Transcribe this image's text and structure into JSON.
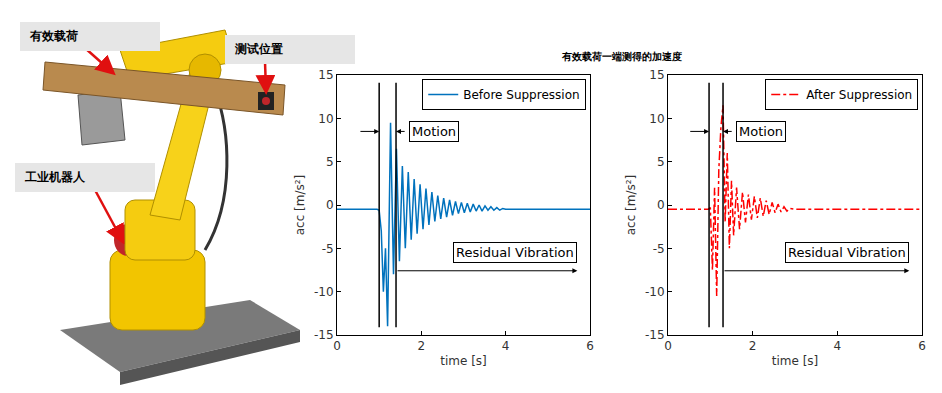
{
  "figure": {
    "title": "有效载荷一端测得的加速度",
    "photo_labels": [
      "有效载荷",
      "测试位置",
      "工业机器人"
    ]
  },
  "chart_data": [
    {
      "type": "line",
      "x": [
        0,
        0.95,
        1.0,
        1.05,
        1.1,
        1.15,
        1.2,
        1.27,
        1.34,
        1.41,
        1.48,
        1.55,
        1.62,
        1.69,
        1.76,
        1.83,
        1.9,
        1.97,
        2.04,
        2.11,
        2.18,
        2.25,
        2.32,
        2.39,
        2.46,
        2.53,
        2.6,
        2.67,
        2.74,
        2.81,
        2.88,
        2.95,
        3.02,
        3.09,
        3.16,
        3.23,
        3.3,
        3.37,
        3.44,
        3.51,
        3.58,
        3.65,
        3.72,
        3.79,
        3.86,
        3.93,
        4.0,
        4.2,
        6.0
      ],
      "series": [
        {
          "name": "Before Suppression",
          "color": "#0072BD",
          "line_style": "solid",
          "values": [
            -0.5,
            -0.5,
            -0.6,
            -3,
            -10,
            -5,
            -14,
            9.5,
            -8,
            6.5,
            -6.5,
            4.5,
            -5,
            3.8,
            -4,
            3,
            -3.3,
            2.4,
            -2.8,
            1.9,
            -2.3,
            1.5,
            -1.9,
            1.1,
            -1.6,
            0.8,
            -1.4,
            0.6,
            -1.2,
            0.4,
            -1.0,
            0.3,
            -0.9,
            0.2,
            -0.8,
            0.1,
            -0.7,
            0,
            -0.7,
            -0.1,
            -0.6,
            -0.2,
            -0.6,
            -0.3,
            -0.6,
            -0.4,
            -0.5,
            -0.5,
            -0.5
          ]
        }
      ],
      "xlabel": "time [s]",
      "ylabel": "acc [m/s²]",
      "xlim": [
        0,
        6
      ],
      "ylim": [
        -15,
        15
      ],
      "xticks": [
        0,
        2,
        4,
        6
      ],
      "yticks": [
        -15,
        -10,
        -5,
        0,
        5,
        10,
        15
      ],
      "grid": false,
      "legend": "upper right",
      "motion_bounds": [
        1.0,
        1.4
      ],
      "annotations": [
        "Motion",
        "Residual Vibration"
      ]
    },
    {
      "type": "line",
      "x": [
        0,
        0.95,
        1.0,
        1.05,
        1.1,
        1.15,
        1.2,
        1.25,
        1.3,
        1.35,
        1.4,
        1.45,
        1.5,
        1.55,
        1.62,
        1.69,
        1.76,
        1.83,
        1.9,
        1.97,
        2.04,
        2.11,
        2.18,
        2.25,
        2.32,
        2.39,
        2.46,
        2.53,
        2.6,
        2.67,
        2.74,
        2.81,
        2.88,
        3.0,
        6.0
      ],
      "series": [
        {
          "name": "After Suppression",
          "color": "#FF0000",
          "line_style": "dashdot",
          "values": [
            -0.5,
            -0.5,
            -0.3,
            -7.5,
            2,
            -10.5,
            4,
            9,
            11.5,
            -2,
            6,
            -5,
            2.8,
            -3.5,
            2,
            -2.8,
            1.5,
            -2,
            1.2,
            -1.7,
            1,
            -1.5,
            0.8,
            -1.3,
            0.5,
            -1.1,
            0.3,
            -0.9,
            0.1,
            -0.8,
            -0.2,
            -0.7,
            -0.4,
            -0.5,
            -0.5
          ]
        }
      ],
      "xlabel": "time [s]",
      "ylabel": "acc [m/s²]",
      "xlim": [
        0,
        6
      ],
      "ylim": [
        -15,
        15
      ],
      "xticks": [
        0,
        2,
        4,
        6
      ],
      "yticks": [
        -15,
        -10,
        -5,
        0,
        5,
        10,
        15
      ],
      "grid": false,
      "legend": "upper right",
      "motion_bounds": [
        0.97,
        1.3
      ],
      "annotations": [
        "Motion",
        "Residual Vibration"
      ]
    }
  ]
}
